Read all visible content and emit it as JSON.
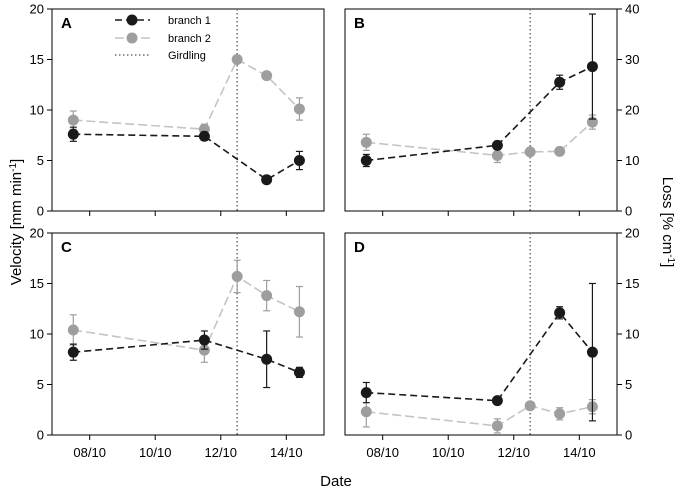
{
  "chart_data": [
    {
      "panel": "A",
      "type": "line",
      "y_axis": "velocity",
      "ylim": [
        0,
        20
      ],
      "x_tick_labels": [
        "08/10",
        "10/10",
        "12/10",
        "14/10"
      ],
      "girdling_x": 12.5,
      "series": [
        {
          "name": "branch 1",
          "x": [
            7.5,
            11.5,
            13.4,
            14.4
          ],
          "y": [
            7.6,
            7.4,
            3.1,
            5.0
          ],
          "err": [
            0.7,
            0.4,
            0.2,
            0.9
          ]
        },
        {
          "name": "branch 2",
          "x": [
            7.5,
            11.5,
            12.5,
            13.4,
            14.4
          ],
          "y": [
            9.0,
            8.1,
            15.0,
            13.4,
            10.1
          ],
          "err": [
            0.9,
            0.5,
            0.0,
            0.3,
            1.1
          ]
        }
      ]
    },
    {
      "panel": "B",
      "type": "line",
      "y_axis": "loss",
      "ylim": [
        0,
        40
      ],
      "x_tick_labels": [
        "08/10",
        "10/10",
        "12/10",
        "14/10"
      ],
      "girdling_x": 12.5,
      "series": [
        {
          "name": "branch 1",
          "x": [
            7.5,
            11.5,
            13.4,
            14.4
          ],
          "y": [
            10.0,
            13.0,
            25.5,
            28.6
          ],
          "err": [
            1.2,
            0.8,
            1.4,
            10.4
          ]
        },
        {
          "name": "branch 2",
          "x": [
            7.5,
            11.5,
            12.5,
            13.4,
            14.4
          ],
          "y": [
            13.6,
            11.0,
            11.7,
            11.8,
            17.6
          ],
          "err": [
            1.6,
            1.4,
            0.0,
            0.0,
            1.4
          ]
        }
      ]
    },
    {
      "panel": "C",
      "type": "line",
      "y_axis": "velocity",
      "ylim": [
        0,
        20
      ],
      "x_tick_labels": [
        "08/10",
        "10/10",
        "12/10",
        "14/10"
      ],
      "girdling_x": 12.5,
      "series": [
        {
          "name": "branch 1",
          "x": [
            7.5,
            11.5,
            13.4,
            14.4
          ],
          "y": [
            8.2,
            9.4,
            7.5,
            6.2
          ],
          "err": [
            0.8,
            0.9,
            2.8,
            0.5
          ]
        },
        {
          "name": "branch 2",
          "x": [
            7.5,
            11.5,
            12.5,
            13.4,
            14.4
          ],
          "y": [
            10.4,
            8.4,
            15.7,
            13.8,
            12.2
          ],
          "err": [
            1.5,
            1.2,
            1.6,
            1.5,
            2.5
          ]
        }
      ]
    },
    {
      "panel": "D",
      "type": "line",
      "y_axis": "loss",
      "ylim": [
        0,
        20
      ],
      "x_tick_labels": [
        "08/10",
        "10/10",
        "12/10",
        "14/10"
      ],
      "girdling_x": 12.5,
      "series": [
        {
          "name": "branch 1",
          "x": [
            7.5,
            11.5,
            13.4,
            14.4
          ],
          "y": [
            4.2,
            3.4,
            12.1,
            8.2
          ],
          "err": [
            1.0,
            0.3,
            0.6,
            6.8
          ]
        },
        {
          "name": "branch 2",
          "x": [
            7.5,
            11.5,
            12.5,
            13.4,
            14.4
          ],
          "y": [
            2.3,
            0.9,
            2.9,
            2.1,
            2.8
          ],
          "err": [
            1.5,
            0.7,
            0.0,
            0.6,
            0.7
          ]
        }
      ]
    }
  ],
  "axes": {
    "xlabel": "Date",
    "ylabel_left": "Velocity [mm min",
    "ylabel_left_sup": "-1",
    "ylabel_left_end": "]",
    "ylabel_right": "Loss [% cm",
    "ylabel_right_sup": "-1",
    "ylabel_right_end": "]"
  },
  "legend": [
    {
      "label": "branch 1",
      "style": "dark-dashed-marker"
    },
    {
      "label": "branch 2",
      "style": "light-dashed-marker"
    },
    {
      "label": "Girdling",
      "style": "dotted"
    }
  ],
  "colors": {
    "branch1": "#1a1a1a",
    "branch2": "#9e9e9e",
    "branch2_line": "#c4c4c4",
    "girdling": "#6f6f6f"
  }
}
